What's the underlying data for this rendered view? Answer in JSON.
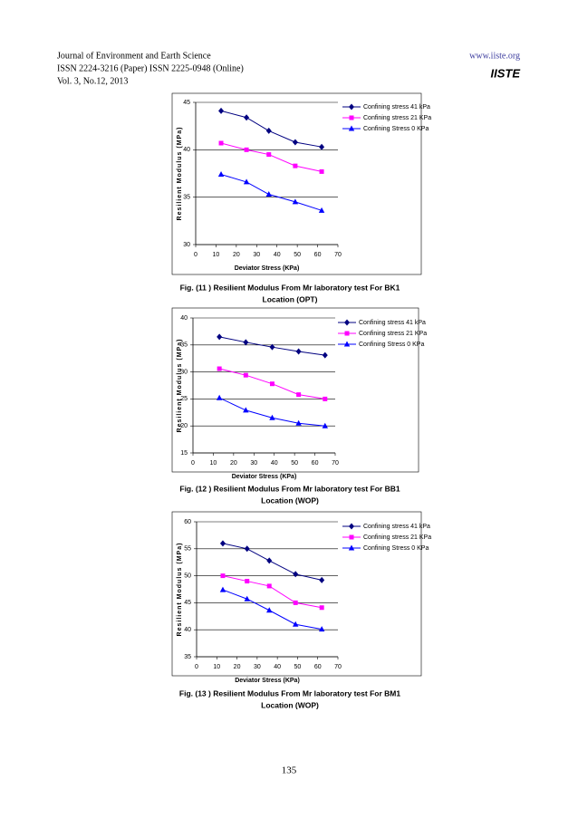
{
  "header": {
    "journal": "Journal of Environment and Earth Science",
    "issn": "ISSN 2224-3216 (Paper) ISSN 2225-0948 (Online)",
    "volume": "Vol. 3, No.12, 2013",
    "website": "www.iiste.org",
    "logo": "IISTE"
  },
  "chart_data": [
    {
      "type": "line",
      "y_label": "Resilient Modulus (MPa)",
      "x_label": "Deviator Stress (KPa)",
      "xlim": [
        0,
        70
      ],
      "xticks": [
        0,
        10,
        20,
        30,
        40,
        50,
        60,
        70
      ],
      "ylim": [
        30,
        45
      ],
      "yticks": [
        30,
        35,
        40,
        45
      ],
      "grid": true,
      "legend": "top-right",
      "x": [
        12.5,
        25,
        36,
        49,
        62
      ],
      "series": [
        {
          "name": "Confining stress 41 kPa",
          "color": "#000080",
          "marker": "diamond",
          "values": [
            44.1,
            43.4,
            42.0,
            40.8,
            40.3
          ]
        },
        {
          "name": "Confining stress 21 KPa",
          "color": "#ff00ff",
          "marker": "square",
          "values": [
            40.7,
            40.0,
            39.5,
            38.3,
            37.7
          ]
        },
        {
          "name": "Confining Stress 0 KPa",
          "color": "#0000ff",
          "marker": "triangle",
          "values": [
            37.4,
            36.6,
            35.3,
            34.5,
            33.6
          ]
        }
      ],
      "caption": [
        "Fig. (11 )  Resilient Modulus From Mr laboratory test For  BK1",
        "Location (OPT)"
      ]
    },
    {
      "type": "line",
      "y_label": "Resilient Modulus (MPa)",
      "x_label": "Deviator Stress (KPa)",
      "xlim": [
        0,
        70
      ],
      "xticks": [
        0,
        10,
        20,
        30,
        40,
        50,
        60,
        70
      ],
      "ylim": [
        15,
        40
      ],
      "yticks": [
        15,
        20,
        25,
        30,
        35,
        40
      ],
      "grid": true,
      "legend": "top-right",
      "x": [
        13,
        26,
        39,
        52,
        65
      ],
      "series": [
        {
          "name": "Confining stress 41 kPa",
          "color": "#000080",
          "marker": "diamond",
          "values": [
            36.5,
            35.5,
            34.6,
            33.8,
            33.1
          ]
        },
        {
          "name": "Confining stress 21 KPa",
          "color": "#ff00ff",
          "marker": "square",
          "values": [
            30.6,
            29.4,
            27.8,
            25.8,
            25.0
          ]
        },
        {
          "name": "Confining Stress 0 KPa",
          "color": "#0000ff",
          "marker": "triangle",
          "values": [
            25.2,
            22.9,
            21.5,
            20.5,
            20.0
          ]
        }
      ],
      "caption": [
        "Fig. (12 )  Resilient Modulus From Mr laboratory test For  BB1",
        "Location (WOP)"
      ]
    },
    {
      "type": "line",
      "y_label": "Resilient Modulus (MPa)",
      "x_label": "Deviator Stress (KPa)",
      "xlim": [
        0,
        70
      ],
      "xticks": [
        0,
        10,
        20,
        30,
        40,
        50,
        60,
        70
      ],
      "ylim": [
        35,
        60
      ],
      "yticks": [
        35,
        40,
        45,
        50,
        55,
        60
      ],
      "grid": true,
      "legend": "top-right",
      "x": [
        13,
        25,
        36,
        49,
        62
      ],
      "series": [
        {
          "name": "Confining stress 41 kPa",
          "color": "#000080",
          "marker": "diamond",
          "values": [
            56.0,
            55.0,
            52.8,
            50.3,
            49.2
          ]
        },
        {
          "name": "Confining stress 21 KPa",
          "color": "#ff00ff",
          "marker": "square",
          "values": [
            50.0,
            49.0,
            48.1,
            45.0,
            44.1
          ]
        },
        {
          "name": "Confining Stress 0 KPa",
          "color": "#0000ff",
          "marker": "triangle",
          "values": [
            47.4,
            45.7,
            43.6,
            41.0,
            40.1
          ]
        }
      ],
      "caption": [
        "Fig. (13 )  Resilient Modulus From Mr laboratory test For  BM1",
        "Location (WOP)"
      ]
    }
  ],
  "page_number": "135"
}
